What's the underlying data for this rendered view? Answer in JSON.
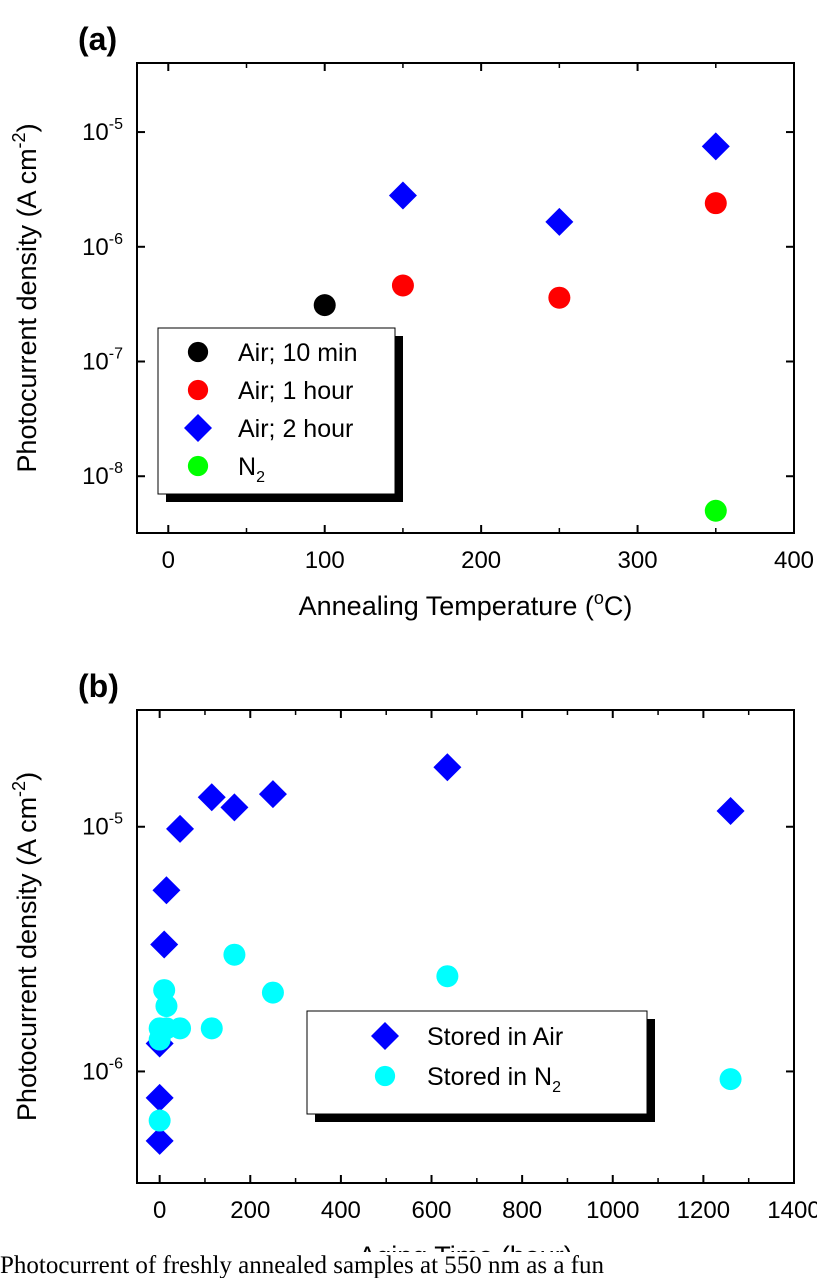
{
  "chart_data": [
    {
      "type": "scatter",
      "panel_label": "(a)",
      "xlabel": "Annealing Temperature (oC)",
      "xlabel_parts": {
        "pre": "Annealing Temperature (",
        "sup": "o",
        "post": "C)"
      },
      "ylabel": "Photocurrent density (A cm-2)",
      "ylabel_parts": {
        "pre": "Photocurrent density (A cm",
        "sup": "-2",
        "post": ")"
      },
      "x_scale": "linear",
      "y_scale": "log",
      "xlim": [
        -20,
        400
      ],
      "ylim": [
        3.2e-09,
        4e-05
      ],
      "x_ticks": [
        0,
        100,
        200,
        300,
        400
      ],
      "x_tick_labels": [
        "0",
        "100",
        "200",
        "300",
        "400"
      ],
      "y_ticks": [
        1e-08,
        1e-07,
        1e-06,
        1e-05
      ],
      "y_tick_labels": [
        {
          "base": "10",
          "exp": "-8"
        },
        {
          "base": "10",
          "exp": "-7"
        },
        {
          "base": "10",
          "exp": "-6"
        },
        {
          "base": "10",
          "exp": "-5"
        }
      ],
      "legend_position": "bottom-left",
      "series": [
        {
          "name": "Air; 10 min",
          "marker": "circle",
          "color": "#000000",
          "x": [
            100
          ],
          "y": [
            3.1e-07
          ]
        },
        {
          "name": "Air; 1 hour",
          "marker": "circle",
          "color": "#ff0000",
          "x": [
            150,
            250,
            350
          ],
          "y": [
            4.6e-07,
            3.6e-07,
            2.4e-06
          ]
        },
        {
          "name": "Air; 2 hour",
          "marker": "diamond",
          "color": "#0000ff",
          "x": [
            150,
            250,
            350
          ],
          "y": [
            2.8e-06,
            1.65e-06,
            7.5e-06
          ]
        },
        {
          "name": "N2",
          "name_parts": {
            "pre": "N",
            "sub": "2"
          },
          "marker": "circle",
          "color": "#00ff00",
          "x": [
            350
          ],
          "y": [
            5e-09
          ]
        }
      ]
    },
    {
      "type": "scatter",
      "panel_label": "(b)",
      "xlabel": "Aging Time (hour)",
      "xlabel_parts": {
        "pre": "Aging Time (hour)",
        "sup": "",
        "post": ""
      },
      "ylabel": "Photocurrent density (A cm-2)",
      "ylabel_parts": {
        "pre": "Photocurrent density (A cm",
        "sup": "-2",
        "post": ")"
      },
      "x_scale": "linear",
      "y_scale": "log",
      "xlim": [
        -50,
        1400
      ],
      "ylim": [
        3.5e-07,
        3e-05
      ],
      "x_ticks": [
        0,
        200,
        400,
        600,
        800,
        1000,
        1200,
        1400
      ],
      "x_tick_labels": [
        "0",
        "200",
        "400",
        "600",
        "800",
        "1000",
        "1200",
        "1400"
      ],
      "y_ticks": [
        1e-06,
        1e-05
      ],
      "y_tick_labels": [
        {
          "base": "10",
          "exp": "-6"
        },
        {
          "base": "10",
          "exp": "-5"
        }
      ],
      "legend_position": "bottom-right",
      "series": [
        {
          "name": "Stored in Air",
          "marker": "diamond",
          "color": "#0000ff",
          "x": [
            0,
            0,
            0,
            10,
            15,
            45,
            115,
            165,
            250,
            635,
            1260
          ],
          "y": [
            5.2e-07,
            7.8e-07,
            1.3e-06,
            3.3e-06,
            5.5e-06,
            9.8e-06,
            1.32e-05,
            1.2e-05,
            1.36e-05,
            1.75e-05,
            1.16e-05
          ]
        },
        {
          "name": "Stored in N2",
          "name_parts": {
            "pre": "Stored in N",
            "sub": "2"
          },
          "marker": "circle",
          "color": "#00ffff",
          "x": [
            0,
            0,
            0,
            10,
            15,
            15,
            45,
            115,
            165,
            250,
            635,
            1260
          ],
          "y": [
            6.3e-07,
            1.35e-06,
            1.5e-06,
            2.15e-06,
            1.85e-06,
            1.5e-06,
            1.5e-06,
            1.5e-06,
            3e-06,
            2.1e-06,
            2.45e-06,
            9.3e-07
          ]
        }
      ]
    }
  ],
  "caption": "Photocurrent of freshly annealed samples at 550 nm as a fun"
}
